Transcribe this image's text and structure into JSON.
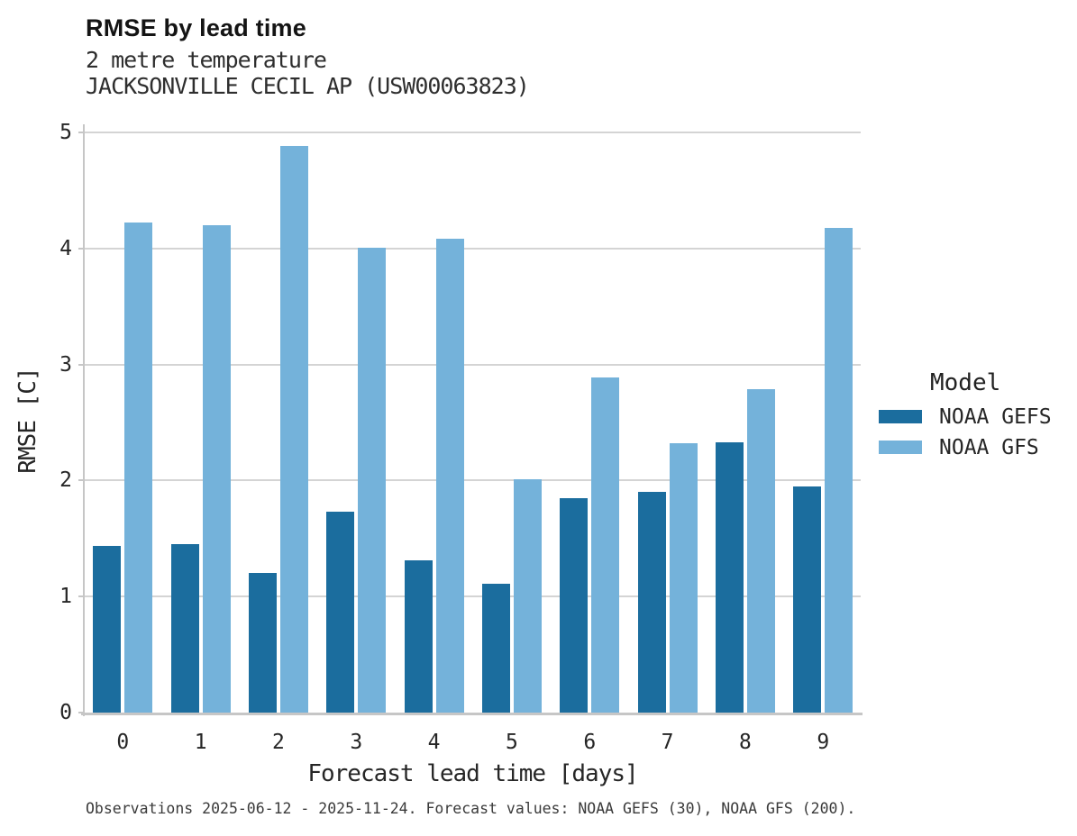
{
  "header": {
    "title": "RMSE by lead time",
    "subtitle1": "2 metre temperature",
    "subtitle2": "JACKSONVILLE CECIL AP (USW00063823)"
  },
  "legend": {
    "title": "Model",
    "items": [
      {
        "label": "NOAA GEFS",
        "color": "#1b6d9e"
      },
      {
        "label": "NOAA GFS",
        "color": "#74b2da"
      }
    ]
  },
  "footer": {
    "caption": "Observations 2025-06-12 - 2025-11-24. Forecast values: NOAA GEFS (30), NOAA GFS (200)."
  },
  "chart_data": {
    "type": "bar",
    "title": "RMSE by lead time",
    "subtitle": [
      "2 metre temperature",
      "JACKSONVILLE CECIL AP (USW00063823)"
    ],
    "categories": [
      "0",
      "1",
      "2",
      "3",
      "4",
      "5",
      "6",
      "7",
      "8",
      "9"
    ],
    "series": [
      {
        "name": "NOAA GEFS",
        "color": "#1b6d9e",
        "values": [
          1.44,
          1.45,
          1.2,
          1.73,
          1.31,
          1.11,
          1.85,
          1.9,
          2.33,
          1.95
        ]
      },
      {
        "name": "NOAA GFS",
        "color": "#74b2da",
        "values": [
          4.22,
          4.2,
          4.88,
          4.01,
          4.08,
          2.01,
          2.89,
          2.32,
          2.79,
          4.18
        ]
      }
    ],
    "xlabel": "Forecast lead time [days]",
    "ylabel": "RMSE [C]",
    "ylim": [
      0,
      5.05
    ],
    "yticks": [
      0,
      1,
      2,
      3,
      4,
      5
    ],
    "grid": true,
    "legend_position": "right",
    "grid_color": "#d4d4d4",
    "axis_color": "#c6c6c6"
  }
}
